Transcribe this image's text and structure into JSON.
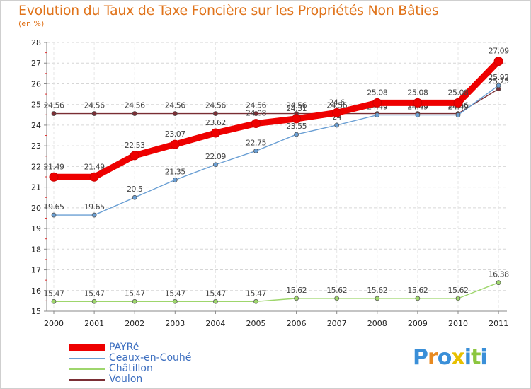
{
  "title": "Evolution du Taux de Taxe Foncière sur les Propriétés Non Bâties",
  "unit_label": "(en %)",
  "logo": {
    "parts": [
      "P",
      "r",
      "o",
      "x",
      "i",
      "t",
      "i"
    ],
    "colors": [
      "#3a8fd8",
      "#e88a20",
      "#3a8fd8",
      "#e8c000",
      "#3a8fd8",
      "#8cc63f",
      "#3a8fd8"
    ]
  },
  "chart_data": {
    "type": "line",
    "title": "Evolution du Taux de Taxe Foncière sur les Propriétés Non Bâties",
    "ylabel": "(en %)",
    "xlabel": "",
    "x": [
      "2000",
      "2001",
      "2002",
      "2003",
      "2004",
      "2005",
      "2006",
      "2007",
      "2008",
      "2009",
      "2010",
      "2011"
    ],
    "ylim": [
      15,
      28
    ],
    "yticks": [
      15,
      16,
      17,
      18,
      19,
      20,
      21,
      22,
      23,
      24,
      25,
      26,
      27,
      28
    ],
    "grid": "horizontal dashed",
    "series": [
      {
        "name": "Voulon",
        "color": "#7a2e34",
        "values": [
          24.56,
          24.56,
          24.56,
          24.56,
          24.56,
          24.56,
          24.56,
          24.56,
          24.56,
          24.56,
          24.56,
          25.75
        ],
        "labels": [
          "24.56",
          "24.56",
          "24.56",
          "24.56",
          "24.56",
          "24.56",
          "24.56",
          "24.56",
          "24.56",
          "24.56",
          "24.56",
          "25.75"
        ]
      },
      {
        "name": "Ceaux-en-Couhé",
        "color": "#6a9fd4",
        "values": [
          19.65,
          19.65,
          20.5,
          21.35,
          22.09,
          22.75,
          23.55,
          24,
          24.49,
          24.49,
          24.49,
          25.92
        ],
        "labels": [
          "19.65",
          "19.65",
          "20.5",
          "21.35",
          "22.09",
          "22.75",
          "23.55",
          "24",
          "24.49",
          "24.49",
          "24.49",
          "25.92"
        ]
      },
      {
        "name": "Châtillon",
        "color": "#9ed66c",
        "values": [
          15.47,
          15.47,
          15.47,
          15.47,
          15.47,
          15.47,
          15.62,
          15.62,
          15.62,
          15.62,
          15.62,
          16.38
        ],
        "labels": [
          "15.47",
          "15.47",
          "15.47",
          "15.47",
          "15.47",
          "15.47",
          "15.62",
          "15.62",
          "15.62",
          "15.62",
          "15.62",
          "16.38"
        ]
      },
      {
        "name": "PAYRé",
        "color": "#ee0000",
        "values": [
          21.49,
          21.49,
          22.53,
          23.07,
          23.62,
          24.08,
          24.31,
          24.6,
          25.08,
          25.08,
          25.08,
          27.09
        ],
        "labels": [
          "21.49",
          "21.49",
          "22.53",
          "23.07",
          "23.62",
          "24.08",
          "24.31",
          "24.6",
          "25.08",
          "25.08",
          "25.08",
          "27.09"
        ]
      }
    ],
    "legend": {
      "position": "bottom-left",
      "entries": [
        {
          "label": "PAYRé",
          "color": "#ee0000"
        },
        {
          "label": "Ceaux-en-Couhé",
          "color": "#6a9fd4"
        },
        {
          "label": "Châtillon",
          "color": "#9ed66c"
        },
        {
          "label": "Voulon",
          "color": "#7a2e34"
        }
      ]
    }
  }
}
